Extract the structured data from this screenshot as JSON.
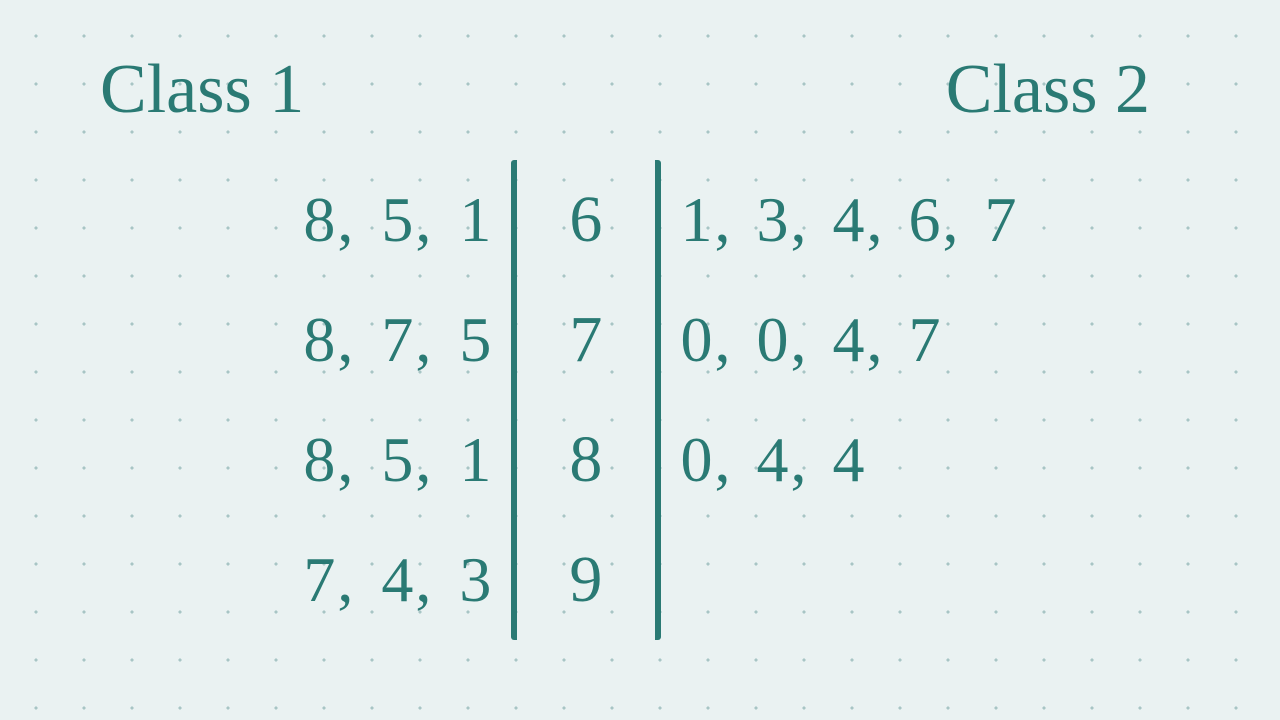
{
  "diagram": {
    "type": "stem-and-leaf-back-to-back",
    "ink_color": "#2a7a74",
    "background_color": "#eaf2f2",
    "dot_grid_color": "#a8c5c5",
    "font_family": "handwritten",
    "header_fontsize": 70,
    "row_fontsize": 64,
    "divider_width": 6,
    "headers": {
      "left": "Class 1",
      "right": "Class 2"
    },
    "stems": [
      "6",
      "7",
      "8",
      "9"
    ],
    "left_leaves": [
      "8, 5, 1",
      "8, 7, 5",
      "8, 5, 1",
      "7, 4, 3"
    ],
    "right_leaves": [
      "1, 3, 4, 6, 7",
      "0, 0, 4, 7",
      "0, 4, 4",
      ""
    ]
  }
}
